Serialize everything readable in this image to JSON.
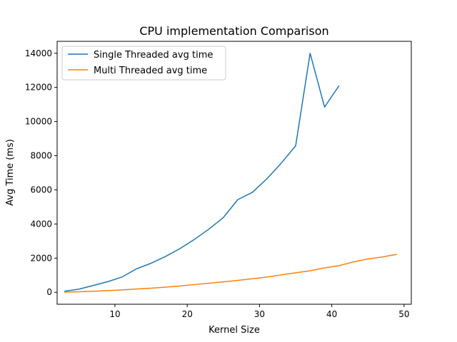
{
  "chart_data": {
    "type": "line",
    "title": "CPU implementation Comparison",
    "xlabel": "Kernel Size",
    "ylabel": "Avg Time (ms)",
    "xlim": [
      2,
      51
    ],
    "ylim": [
      -700,
      14700
    ],
    "xticks": [
      10,
      20,
      30,
      40,
      50
    ],
    "yticks": [
      0,
      2000,
      4000,
      6000,
      8000,
      10000,
      12000,
      14000
    ],
    "grid": false,
    "legend_position": "top-left",
    "series": [
      {
        "name": "Single Threaded avg time",
        "color": "#1f77b4",
        "x": [
          3,
          5,
          7,
          9,
          11,
          13,
          15,
          17,
          19,
          21,
          23,
          25,
          27,
          29,
          31,
          33,
          35,
          37,
          39,
          41
        ],
        "y": [
          60,
          180,
          400,
          620,
          900,
          1380,
          1700,
          2100,
          2560,
          3100,
          3700,
          4380,
          5430,
          5850,
          6640,
          7560,
          8580,
          14000,
          10850,
          12100
        ]
      },
      {
        "name": "Multi Threaded avg time",
        "color": "#ff7f0e",
        "x": [
          3,
          5,
          7,
          9,
          11,
          13,
          15,
          17,
          19,
          21,
          23,
          25,
          27,
          29,
          31,
          33,
          35,
          37,
          39,
          41,
          43,
          45,
          47,
          49
        ],
        "y": [
          10,
          30,
          60,
          100,
          140,
          190,
          240,
          300,
          370,
          450,
          530,
          610,
          700,
          790,
          890,
          1020,
          1140,
          1260,
          1430,
          1560,
          1780,
          1950,
          2070,
          2220
        ]
      }
    ]
  }
}
